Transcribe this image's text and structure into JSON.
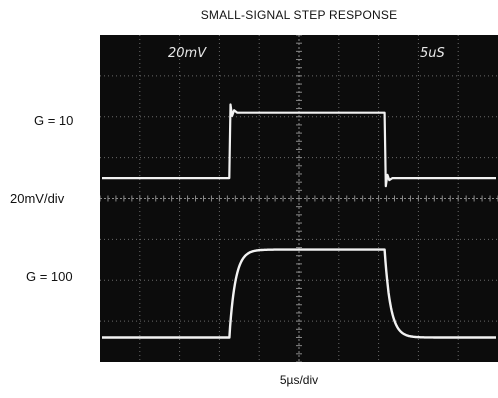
{
  "chart_data": {
    "type": "line",
    "title": "SMALL-SIGNAL STEP RESPONSE",
    "xlabel": "5µs/div",
    "ylabel": "20mV/div",
    "grid": true,
    "divisions": {
      "x": 10,
      "y": 8
    },
    "screen_labels": {
      "vertical": "20mV",
      "horizontal": "5uS"
    },
    "traces": [
      {
        "label": "G = 10",
        "description": "fast step with small overshoot",
        "low_level_div": 4.5,
        "high_level_div": 6.1,
        "step_up_div": 3.25,
        "step_down_div": 7.15,
        "rise_time_div": 0.03,
        "overshoot_div": 0.2
      },
      {
        "label": "G = 100",
        "description": "slower rounded step, no overshoot",
        "low_level_div": 0.6,
        "high_level_div": 2.75,
        "step_up_div": 3.25,
        "step_down_div": 7.15,
        "time_constant_div": 0.15
      }
    ]
  }
}
